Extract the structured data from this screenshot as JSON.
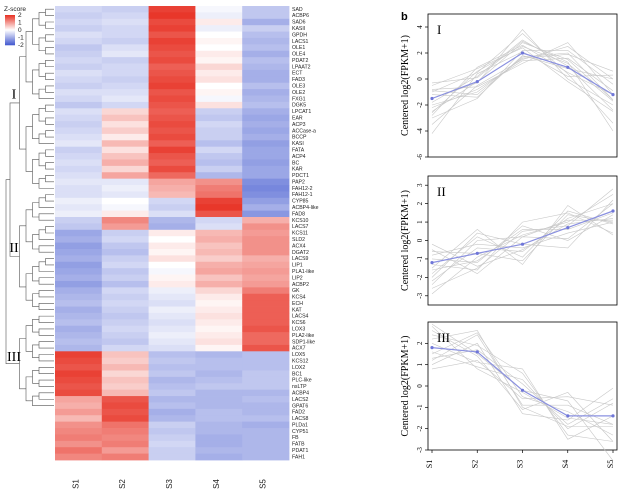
{
  "chart_data": [
    {
      "type": "heatmap",
      "legend": {
        "title": "Z-score",
        "ticks": [
          2,
          1,
          0,
          -1,
          -2
        ],
        "colors": {
          "low": "#4a5fd1",
          "mid": "#ffffff",
          "high": "#e8372a"
        }
      },
      "columns": [
        "S1",
        "S2",
        "S3",
        "S4",
        "S5"
      ],
      "clusters": [
        {
          "label": "I",
          "rows": [
            0,
            28
          ]
        },
        {
          "label": "II",
          "rows": [
            29,
            47
          ]
        },
        {
          "label": "III",
          "rows": [
            48,
            62
          ]
        }
      ],
      "genes": [
        "SAD",
        "ACBP6",
        "SAD6",
        "KASII",
        "GPDH",
        "LACS1",
        "OLE1",
        "OLE4",
        "PDAT2",
        "LPAAT2",
        "ECT",
        "FAD3",
        "OLE3",
        "OLE2",
        "FXG1",
        "DGK5",
        "LPCAT1",
        "EAR",
        "ACP3",
        "ACCase-a",
        "BCCP",
        "KASI",
        "FATA",
        "ACP4",
        "BC",
        "KAR",
        "PDCT1",
        "PAP2",
        "FAH12-2",
        "FAH12-1",
        "CYP85",
        "ACBP4-like",
        "FAD8",
        "KCS10",
        "LACS7",
        "KCS11",
        "SLD2",
        "ACX4",
        "DGAT2",
        "LACS9",
        "LIP1",
        "PLA1-like",
        "LIP2",
        "ACBP2",
        "GK",
        "KCS4",
        "ECH",
        "KAT",
        "LACS4",
        "KCS6",
        "LOX3",
        "PLA2-like",
        "SDP1-like",
        "ACX7",
        "LOX5",
        "KCS12",
        "LOX2",
        "BC1",
        "PLC-like",
        "nsLTP",
        "ACBP4",
        "LACS2",
        "GPAT6",
        "FAD2",
        "LACS8",
        "PLDa1",
        "CYP51",
        "FB",
        "FATB",
        "PDAT1",
        "FAH1"
      ],
      "values": [
        [
          -0.5,
          -0.6,
          1.9,
          -0.1,
          -0.7
        ],
        [
          -0.6,
          -0.5,
          2.0,
          -0.2,
          -0.7
        ],
        [
          -0.5,
          -0.4,
          1.8,
          0.2,
          -1.0
        ],
        [
          -0.6,
          -0.5,
          1.9,
          -0.2,
          -0.6
        ],
        [
          -0.4,
          -0.5,
          1.7,
          0.0,
          -0.8
        ],
        [
          -0.5,
          -0.6,
          1.9,
          0.1,
          -0.9
        ],
        [
          -0.7,
          -0.4,
          1.8,
          0.0,
          -0.8
        ],
        [
          -0.6,
          -0.3,
          1.7,
          0.2,
          -1.0
        ],
        [
          -0.5,
          -0.6,
          1.8,
          0.1,
          -0.8
        ],
        [
          -0.6,
          -0.5,
          1.6,
          0.4,
          -0.9
        ],
        [
          -0.4,
          -0.5,
          1.7,
          0.2,
          -1.0
        ],
        [
          -0.5,
          -0.6,
          1.8,
          0.3,
          -1.0
        ],
        [
          -0.6,
          -0.5,
          1.9,
          0.0,
          -0.8
        ],
        [
          -0.4,
          -0.4,
          1.7,
          0.1,
          -1.0
        ],
        [
          -0.5,
          -0.3,
          1.8,
          -0.1,
          -0.9
        ],
        [
          -0.7,
          -0.5,
          1.7,
          0.3,
          -0.8
        ],
        [
          -0.4,
          0.4,
          1.6,
          -0.6,
          -1.0
        ],
        [
          -0.5,
          0.6,
          1.7,
          -0.7,
          -1.1
        ],
        [
          -0.6,
          0.3,
          1.8,
          -0.5,
          -1.0
        ],
        [
          -0.5,
          0.5,
          1.7,
          -0.6,
          -1.1
        ],
        [
          -0.4,
          0.2,
          1.8,
          -0.6,
          -1.0
        ],
        [
          -0.3,
          0.7,
          1.6,
          -0.8,
          -1.2
        ],
        [
          -0.6,
          0.3,
          1.9,
          -0.5,
          -1.1
        ],
        [
          -0.5,
          0.6,
          1.7,
          -0.7,
          -1.1
        ],
        [
          -0.4,
          0.8,
          1.6,
          -0.8,
          -1.2
        ],
        [
          -0.5,
          0.4,
          1.8,
          -0.6,
          -1.1
        ],
        [
          -0.4,
          0.9,
          1.5,
          -0.9,
          -1.1
        ],
        [
          -0.3,
          -0.3,
          0.9,
          1.1,
          -1.4
        ],
        [
          -0.4,
          -0.2,
          0.8,
          1.3,
          -1.5
        ],
        [
          -0.4,
          -0.3,
          0.7,
          1.4,
          -1.4
        ],
        [
          -0.2,
          0.0,
          -0.5,
          1.9,
          -1.2
        ],
        [
          -0.3,
          -0.1,
          -0.6,
          2.0,
          -1.0
        ],
        [
          -0.2,
          0.2,
          -0.4,
          1.7,
          -1.3
        ],
        [
          -0.6,
          1.2,
          -0.9,
          -0.5,
          0.8
        ],
        [
          -0.7,
          1.0,
          -1.0,
          -0.4,
          1.1
        ],
        [
          -1.1,
          -0.6,
          0.2,
          0.7,
          1.0
        ],
        [
          -1.0,
          -0.5,
          0.0,
          0.8,
          1.1
        ],
        [
          -1.2,
          -0.7,
          0.2,
          0.6,
          1.1
        ],
        [
          -1.1,
          -0.8,
          0.1,
          0.7,
          1.1
        ],
        [
          -1.0,
          -0.6,
          0.3,
          0.5,
          0.8
        ],
        [
          -1.2,
          -0.5,
          0.0,
          0.8,
          0.9
        ],
        [
          -1.1,
          -0.7,
          -0.1,
          0.9,
          1.0
        ],
        [
          -1.0,
          -0.6,
          0.1,
          0.6,
          0.9
        ],
        [
          -1.2,
          -0.8,
          0.2,
          0.8,
          1.0
        ],
        [
          -1.0,
          -0.5,
          -0.2,
          0.4,
          1.3
        ],
        [
          -0.9,
          -0.6,
          -0.3,
          0.2,
          1.6
        ],
        [
          -0.8,
          -0.5,
          -0.4,
          0.1,
          1.6
        ],
        [
          -1.0,
          -0.6,
          -0.2,
          0.2,
          1.6
        ],
        [
          -0.9,
          -0.7,
          -0.3,
          0.3,
          1.6
        ],
        [
          -0.8,
          -0.6,
          -0.4,
          0.2,
          1.6
        ],
        [
          -1.0,
          -0.5,
          -0.3,
          0.1,
          1.7
        ],
        [
          -0.9,
          -0.6,
          -0.2,
          0.2,
          1.5
        ],
        [
          -0.8,
          -0.7,
          -0.3,
          0.3,
          1.5
        ],
        [
          -0.9,
          -0.5,
          -0.4,
          0.1,
          1.7
        ],
        [
          1.9,
          0.6,
          -0.8,
          -0.9,
          -0.8
        ],
        [
          1.8,
          0.5,
          -0.7,
          -0.8,
          -0.8
        ],
        [
          1.7,
          0.7,
          -0.8,
          -0.8,
          -0.8
        ],
        [
          1.9,
          0.4,
          -0.7,
          -0.9,
          -0.7
        ],
        [
          1.8,
          0.6,
          -0.9,
          -0.8,
          -0.7
        ],
        [
          1.7,
          0.5,
          -0.8,
          -0.7,
          -0.7
        ],
        [
          1.8,
          0.7,
          -0.7,
          -0.9,
          -0.9
        ],
        [
          0.9,
          1.7,
          -0.9,
          -0.9,
          -0.8
        ],
        [
          0.8,
          1.8,
          -0.8,
          -0.9,
          -0.9
        ],
        [
          1.0,
          1.7,
          -1.0,
          -0.8,
          -0.9
        ],
        [
          0.7,
          1.8,
          -0.9,
          -0.8,
          -0.8
        ],
        [
          1.1,
          1.4,
          -0.6,
          -0.9,
          -1.0
        ],
        [
          1.2,
          1.3,
          -0.7,
          -0.9,
          -0.9
        ],
        [
          1.3,
          1.2,
          -0.6,
          -1.0,
          -0.9
        ],
        [
          1.1,
          1.3,
          -0.5,
          -1.0,
          -0.9
        ],
        [
          1.4,
          1.0,
          -0.6,
          -0.9,
          -0.9
        ],
        [
          1.2,
          1.3,
          -0.6,
          -1.0,
          -0.9
        ]
      ]
    },
    {
      "type": "line",
      "panel_label": "b",
      "x": [
        "S1",
        "S2",
        "S3",
        "S4",
        "S5"
      ],
      "ylabel": "Centered log2(FPKM+1)",
      "panels": [
        {
          "label": "I",
          "ylim": [
            -6,
            5
          ],
          "yticks": [
            4,
            2,
            0,
            -2,
            -4,
            -6
          ],
          "mean": [
            -1.5,
            -0.2,
            2.0,
            0.9,
            -1.2
          ],
          "gray": [
            [
              -3.5,
              -0.5,
              1.5,
              2.5,
              0.0
            ],
            [
              -2.5,
              -0.2,
              2.8,
              1.5,
              -1.6
            ],
            [
              -1.0,
              0.5,
              3.5,
              0.4,
              -3.4
            ],
            [
              -2.0,
              -1.0,
              1.6,
              1.9,
              0.6
            ],
            [
              -0.5,
              0.8,
              2.4,
              -0.2,
              -2.5
            ],
            [
              -3.0,
              -1.5,
              2.2,
              2.2,
              -0.4
            ],
            [
              -1.8,
              0.2,
              3.0,
              1.0,
              -2.4
            ],
            [
              -0.8,
              -0.6,
              1.2,
              2.8,
              -1.2
            ],
            [
              -2.8,
              0.9,
              2.6,
              0.5,
              -1.2
            ],
            [
              -1.2,
              -1.4,
              1.8,
              0.8,
              0.0
            ],
            [
              -0.3,
              0.1,
              2.9,
              1.3,
              -4.0
            ],
            [
              -2.2,
              -0.8,
              1.4,
              1.6,
              -0.9
            ],
            [
              -4.2,
              0.4,
              2.1,
              0.2,
              0.3
            ],
            [
              -1.5,
              -0.3,
              3.8,
              0.0,
              -2.0
            ],
            [
              -0.9,
              -1.2,
              1.7,
              2.0,
              -1.6
            ],
            [
              -2.6,
              0.6,
              2.5,
              1.2,
              -1.7
            ]
          ]
        },
        {
          "label": "II",
          "ylim": [
            -3.5,
            3.5
          ],
          "yticks": [
            3,
            2,
            1,
            0,
            -1,
            -2,
            -3
          ],
          "mean": [
            -1.2,
            -0.7,
            -0.2,
            0.7,
            1.6
          ],
          "gray": [
            [
              -2.6,
              -1.5,
              0.5,
              0.8,
              2.8
            ],
            [
              -1.8,
              0.2,
              -0.9,
              1.6,
              0.9
            ],
            [
              -0.5,
              -1.8,
              0.2,
              0.1,
              2.0
            ],
            [
              -2.2,
              -0.4,
              -0.6,
              1.2,
              2.0
            ],
            [
              -1.0,
              -1.2,
              0.8,
              0.0,
              1.4
            ],
            [
              -1.5,
              0.6,
              -1.3,
              1.9,
              0.3
            ],
            [
              -2.9,
              -0.9,
              0.3,
              1.0,
              2.5
            ],
            [
              -0.8,
              -0.2,
              -0.4,
              0.4,
              1.0
            ],
            [
              -1.3,
              -1.6,
              1.0,
              1.5,
              0.4
            ],
            [
              -2.0,
              0.4,
              -0.2,
              -0.4,
              2.2
            ],
            [
              -0.6,
              -0.7,
              -1.1,
              1.4,
              1.0
            ],
            [
              -1.6,
              -1.1,
              0.6,
              0.6,
              1.5
            ],
            [
              -0.2,
              -1.4,
              -0.5,
              0.9,
              1.2
            ],
            [
              -2.4,
              0.0,
              0.2,
              1.1,
              1.1
            ]
          ]
        },
        {
          "label": "III",
          "ylim": [
            -3,
            3
          ],
          "yticks": [
            2,
            1,
            0,
            -1,
            -2,
            -3
          ],
          "mean": [
            1.8,
            1.6,
            -0.2,
            -1.4,
            -1.4
          ],
          "gray": [
            [
              2.8,
              0.8,
              -0.3,
              -1.5,
              -1.8
            ],
            [
              1.2,
              2.4,
              -0.9,
              -0.9,
              -1.8
            ],
            [
              2.4,
              1.9,
              0.6,
              -2.3,
              -2.6
            ],
            [
              0.8,
              1.2,
              -0.6,
              -0.5,
              -0.9
            ],
            [
              2.2,
              2.6,
              -1.0,
              -1.9,
              -1.9
            ],
            [
              1.6,
              0.9,
              0.3,
              -2.0,
              -0.8
            ],
            [
              2.9,
              1.5,
              -0.2,
              -0.7,
              -3.5
            ],
            [
              1.0,
              2.0,
              -1.3,
              -1.6,
              -0.1
            ],
            [
              2.0,
              1.1,
              0.8,
              -2.5,
              -1.4
            ],
            [
              1.5,
              2.5,
              -0.5,
              -1.2,
              -2.3
            ],
            [
              2.6,
              1.4,
              -1.1,
              -0.3,
              -2.6
            ],
            [
              1.3,
              1.7,
              0.1,
              -1.8,
              -0.6
            ]
          ]
        }
      ]
    }
  ]
}
